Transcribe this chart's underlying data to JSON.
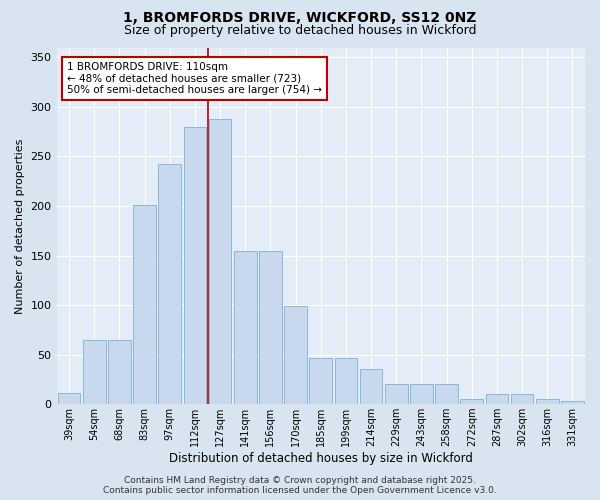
{
  "title_line1": "1, BROMFORDS DRIVE, WICKFORD, SS12 0NZ",
  "title_line2": "Size of property relative to detached houses in Wickford",
  "xlabel": "Distribution of detached houses by size in Wickford",
  "ylabel": "Number of detached properties",
  "categories": [
    "39sqm",
    "54sqm",
    "68sqm",
    "83sqm",
    "97sqm",
    "112sqm",
    "127sqm",
    "141sqm",
    "156sqm",
    "170sqm",
    "185sqm",
    "199sqm",
    "214sqm",
    "229sqm",
    "243sqm",
    "258sqm",
    "272sqm",
    "287sqm",
    "302sqm",
    "316sqm",
    "331sqm"
  ],
  "values": [
    11,
    65,
    65,
    201,
    242,
    280,
    288,
    155,
    155,
    99,
    47,
    47,
    35,
    20,
    20,
    20,
    5,
    10,
    10,
    5,
    3
  ],
  "bar_color": "#c8d9ee",
  "bar_edge_color": "#7fb0d8",
  "vline_x_index": 5.5,
  "vline_color": "#bb0000",
  "annotation_title": "1 BROMFORDS DRIVE: 110sqm",
  "annotation_line2": "← 48% of detached houses are smaller (723)",
  "annotation_line3": "50% of semi-detached houses are larger (754) →",
  "ylim_max": 360,
  "yticks": [
    0,
    50,
    100,
    150,
    200,
    250,
    300,
    350
  ],
  "footer": "Contains HM Land Registry data © Crown copyright and database right 2025.\nContains public sector information licensed under the Open Government Licence v3.0.",
  "fig_bg_color": "#d8e4f0",
  "plot_bg_color": "#e4edf7"
}
